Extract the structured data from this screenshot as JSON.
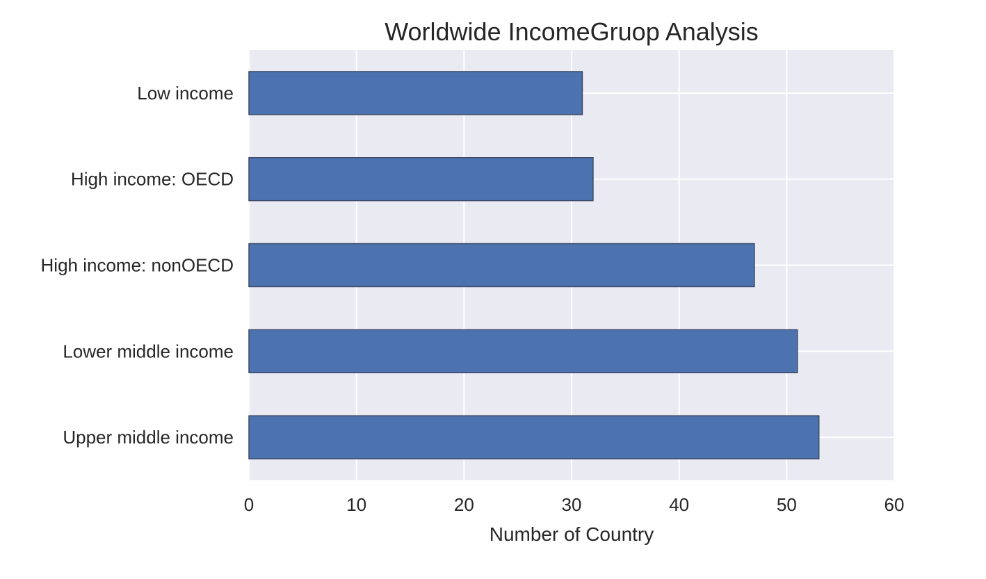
{
  "chart_data": {
    "type": "bar",
    "orientation": "horizontal",
    "title": "Worldwide IncomeGruop Analysis",
    "xlabel": "Number of Country",
    "ylabel": "",
    "categories": [
      "Low income",
      "High income: OECD",
      "High income: nonOECD",
      "Lower middle income",
      "Upper middle income"
    ],
    "values": [
      31,
      32,
      47,
      51,
      53
    ],
    "xlim": [
      0,
      60
    ],
    "xticks": [
      "0",
      "10",
      "20",
      "30",
      "40",
      "50",
      "60"
    ],
    "grid": true,
    "legend": "none",
    "colors": {
      "bar": "#4c72b0",
      "bar_edge": "#3d4a66",
      "plot_background": "#eaeaf2",
      "grid": "#ffffff"
    }
  }
}
